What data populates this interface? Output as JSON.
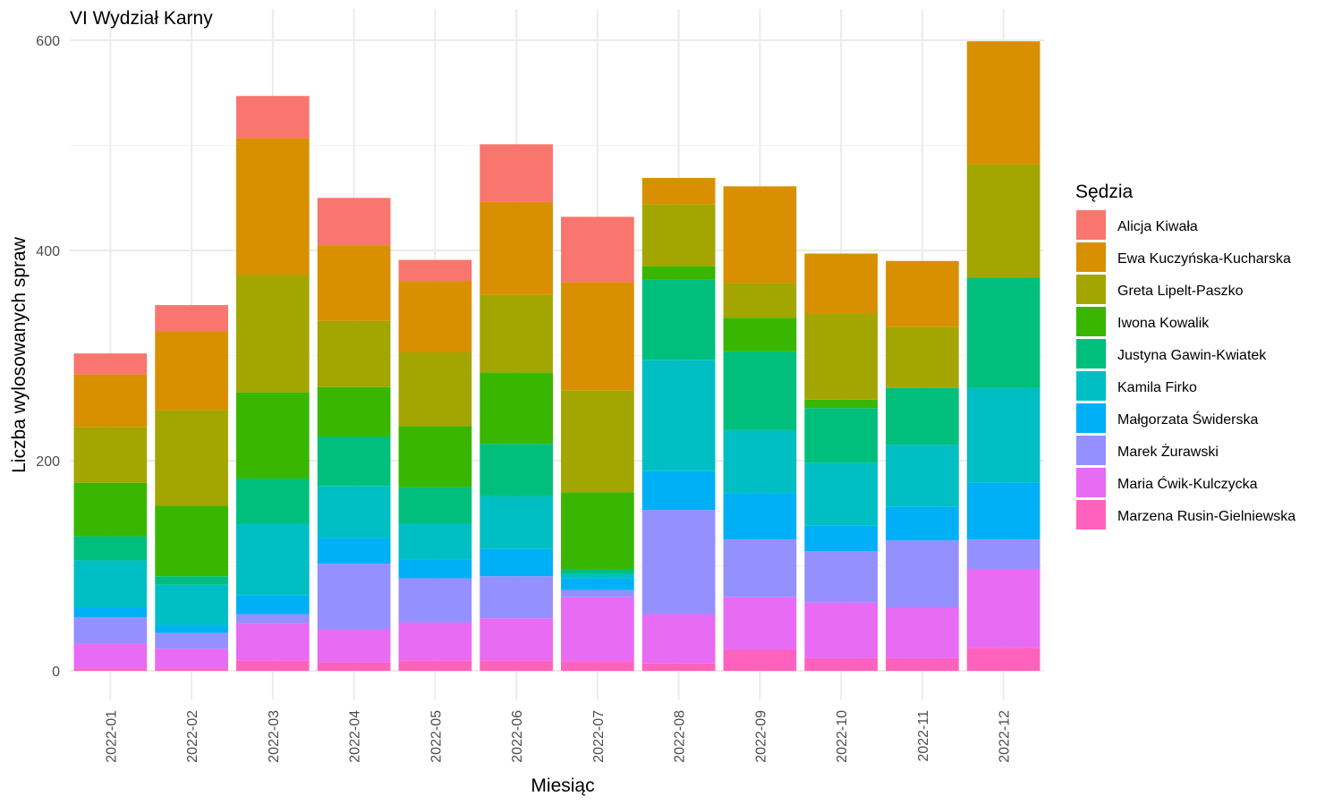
{
  "chart_data": {
    "type": "bar",
    "stacked": true,
    "title": "VI Wydział Karny",
    "xlabel": "Miesiąc",
    "ylabel": "Liczba wylosowanych spraw",
    "ylim": [
      0,
      600
    ],
    "yticks": [
      0,
      200,
      400,
      600
    ],
    "grid": true,
    "legend": {
      "title": "Sędzia",
      "placement": "right"
    },
    "categories": [
      "2022-01",
      "2022-02",
      "2022-03",
      "2022-04",
      "2022-05",
      "2022-06",
      "2022-07",
      "2022-08",
      "2022-09",
      "2022-10",
      "2022-11",
      "2022-12"
    ],
    "series": [
      {
        "name": "Alicja Kiwała",
        "color": "#F8766D",
        "values": [
          20,
          25,
          40,
          45,
          20,
          55,
          62,
          0,
          0,
          0,
          0,
          0
        ]
      },
      {
        "name": "Ewa Kuczyńska-Kucharska",
        "color": "#D89000",
        "values": [
          50,
          75,
          130,
          72,
          68,
          88,
          103,
          25,
          92,
          57,
          63,
          117
        ]
      },
      {
        "name": "Greta Lipelt-Paszko",
        "color": "#A3A500",
        "values": [
          53,
          91,
          112,
          63,
          70,
          74,
          97,
          59,
          33,
          82,
          58,
          108
        ]
      },
      {
        "name": "Iwona Kowalik",
        "color": "#39B600",
        "values": [
          51,
          67,
          82,
          47,
          58,
          68,
          73,
          13,
          32,
          8,
          0,
          0
        ]
      },
      {
        "name": "Justyna Gawin-Kwiatek",
        "color": "#00BF7D",
        "values": [
          23,
          8,
          43,
          47,
          35,
          50,
          5,
          76,
          75,
          52,
          54,
          105
        ]
      },
      {
        "name": "Kamila Firko",
        "color": "#00BFC4",
        "values": [
          45,
          39,
          68,
          50,
          34,
          50,
          4,
          106,
          60,
          60,
          59,
          90
        ]
      },
      {
        "name": "Małgorzata Świderska",
        "color": "#00B0F6",
        "values": [
          9,
          7,
          18,
          24,
          18,
          26,
          11,
          37,
          44,
          24,
          32,
          54
        ]
      },
      {
        "name": "Marek Żurawski",
        "color": "#9590FF",
        "values": [
          25,
          15,
          9,
          62,
          42,
          40,
          7,
          99,
          55,
          49,
          64,
          28
        ]
      },
      {
        "name": "Maria Ćwik-Kulczycka",
        "color": "#E76BF3",
        "values": [
          24,
          19,
          35,
          32,
          36,
          40,
          61,
          47,
          50,
          53,
          48,
          75
        ]
      },
      {
        "name": "Marzena Rusin-Gielniewska",
        "color": "#FF62BC",
        "values": [
          2,
          2,
          10,
          8,
          10,
          10,
          9,
          7,
          20,
          12,
          12,
          22
        ]
      }
    ]
  }
}
